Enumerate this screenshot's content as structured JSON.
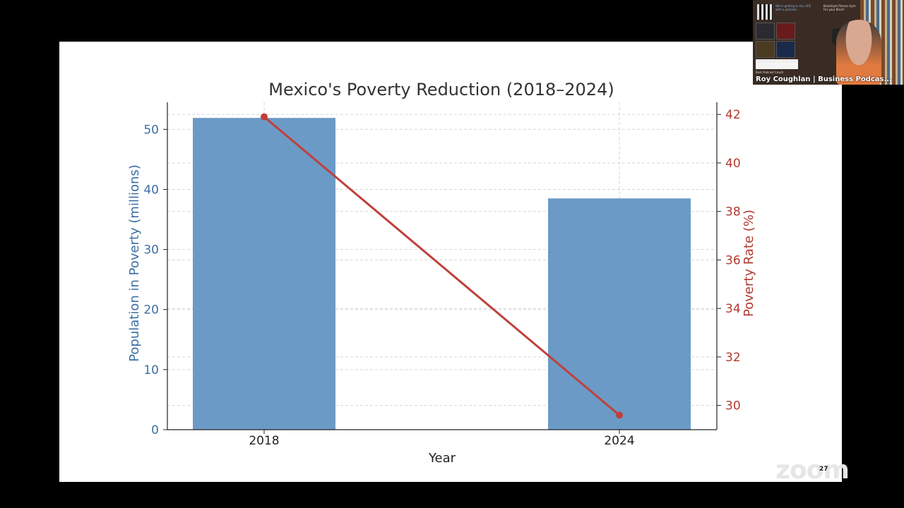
{
  "chart_data": {
    "type": "bar",
    "title": "Mexico's Poverty Reduction (2018–2024)",
    "xlabel": "Year",
    "categories": [
      "2018",
      "2024"
    ],
    "series": [
      {
        "kind": "bar",
        "axis": "left",
        "values": [
          51.9,
          38.5
        ],
        "color": "#6c9ac7"
      },
      {
        "kind": "line",
        "axis": "right",
        "values": [
          41.9,
          29.6
        ],
        "color": "#c0403a"
      }
    ],
    "y_left": {
      "label": "Population in Poverty (millions)",
      "range": [
        0,
        54.5
      ],
      "ticks": [
        0,
        10,
        20,
        30,
        40,
        50
      ],
      "color": "#3b6ea5"
    },
    "y_right": {
      "label": "Poverty Rate (%)",
      "range": [
        29.0,
        42.5
      ],
      "ticks": [
        30,
        32,
        34,
        36,
        38,
        40,
        42
      ],
      "color": "#b03a30"
    },
    "grid": true,
    "legend": "none"
  },
  "video_tile": {
    "participant_name": "Roy Coughlan | Business Podcas...",
    "promo_left": "We're getting to You LIVE with a podcast...",
    "promo_right": "BrainGym Fitness Gym For your Brain!",
    "promo_bottom": "Virtual Assistants to VA World",
    "caption_small": "Best Podcast Coach"
  },
  "overlay": {
    "watermark": "zoom",
    "slide_number": "27"
  }
}
